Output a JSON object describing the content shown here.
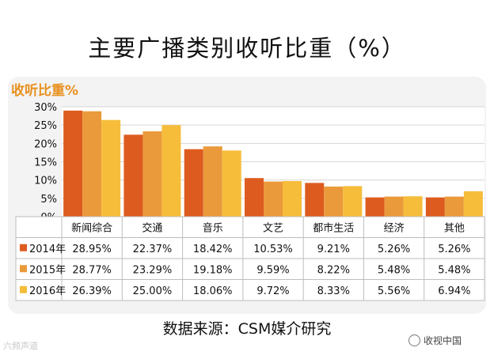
{
  "title": "主要广播类别收听比重（%）",
  "source": "数据来源：CSM媒介研究",
  "watermark_left": "六频声道",
  "watermark_right": "收视中国",
  "colors": {
    "2014年": "#dd5b1f",
    "2015年": "#ea9a3b",
    "2016年": "#f6bd3b",
    "subtitle": "#e8901e"
  },
  "chart_data": {
    "type": "bar",
    "title": "收听比重%",
    "categories": [
      "新闻综合",
      "交通",
      "音乐",
      "文艺",
      "都市生活",
      "经济",
      "其他"
    ],
    "series": [
      {
        "name": "2014年",
        "values": [
          28.95,
          22.37,
          18.42,
          10.53,
          9.21,
          5.26,
          5.26
        ],
        "labels": [
          "28.95%",
          "22.37%",
          "18.42%",
          "10.53%",
          "9.21%",
          "5.26%",
          "5.26%"
        ]
      },
      {
        "name": "2015年",
        "values": [
          28.77,
          23.29,
          19.18,
          9.59,
          8.22,
          5.48,
          5.48
        ],
        "labels": [
          "28.77%",
          "23.29%",
          "19.18%",
          "9.59%",
          "8.22%",
          "5.48%",
          "5.48%"
        ]
      },
      {
        "name": "2016年",
        "values": [
          26.39,
          25.0,
          18.06,
          9.72,
          8.33,
          5.56,
          6.94
        ],
        "labels": [
          "26.39%",
          "25.00%",
          "18.06%",
          "9.72%",
          "8.33%",
          "5.56%",
          "6.94%"
        ]
      }
    ],
    "y_ticks": [
      "0%",
      "5%",
      "10%",
      "15%",
      "20%",
      "25%",
      "30%"
    ],
    "ylim": [
      0,
      30
    ],
    "grid": true,
    "legend": "data-table"
  }
}
